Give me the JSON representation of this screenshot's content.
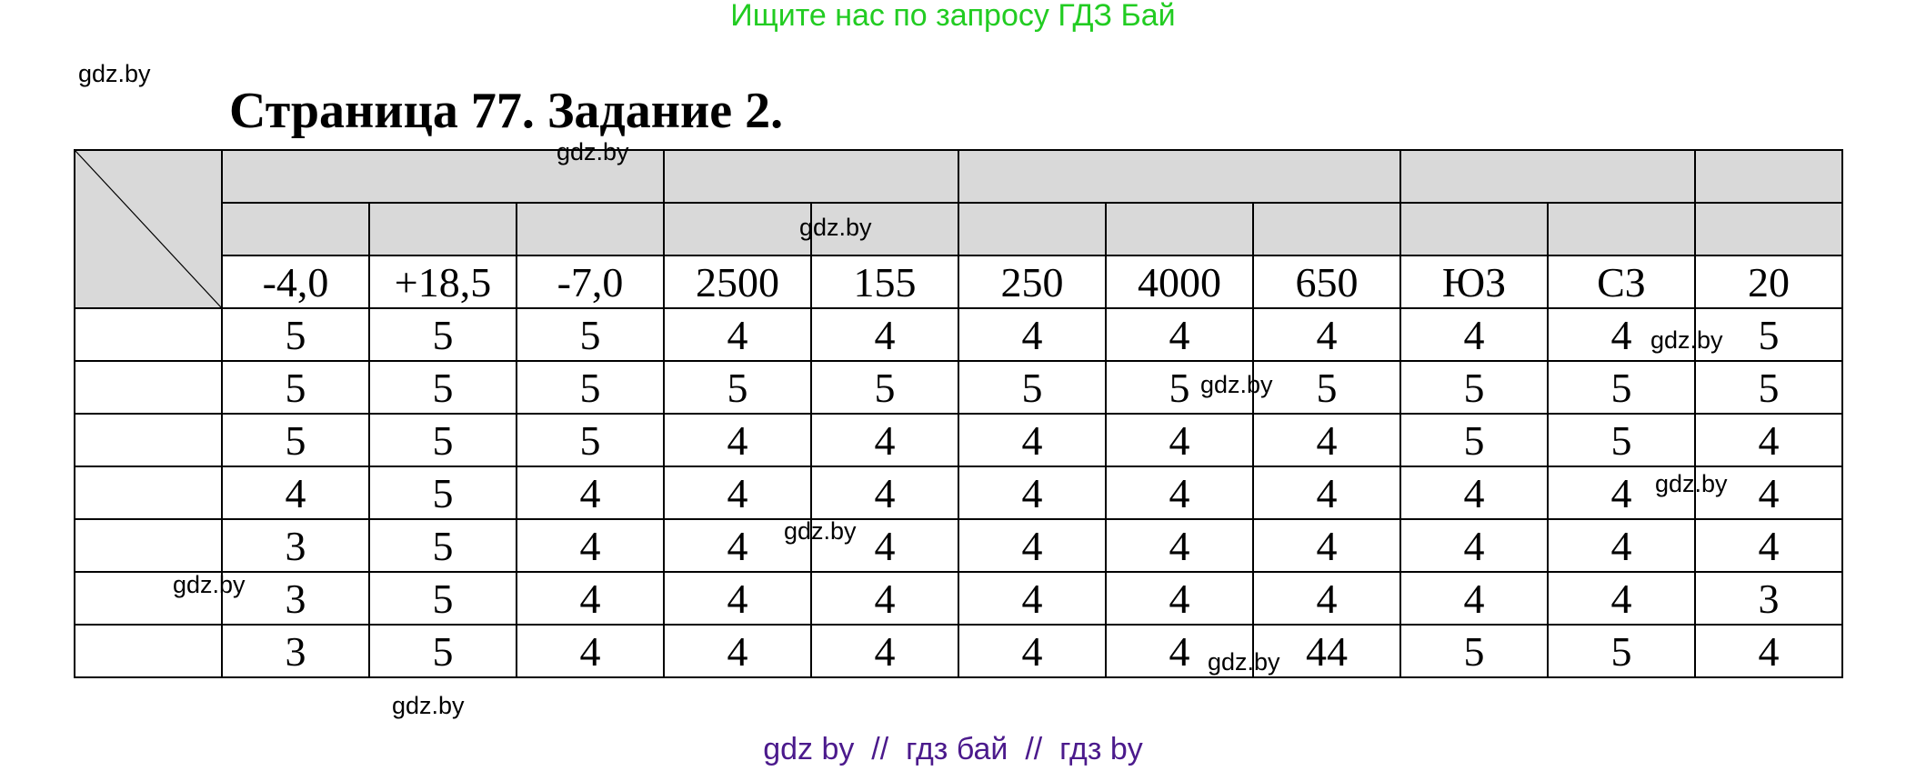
{
  "banner": "Ищите нас по запросу ГДЗ Бай",
  "title": "Страница 77. Задание 2.",
  "header_values": [
    "-4,0",
    "+18,5",
    "-7,0",
    "2500",
    "155",
    "250",
    "4000",
    "650",
    "ЮЗ",
    "СЗ",
    "20"
  ],
  "rows": [
    [
      "5",
      "5",
      "5",
      "4",
      "4",
      "4",
      "4",
      "4",
      "4",
      "4",
      "5"
    ],
    [
      "5",
      "5",
      "5",
      "5",
      "5",
      "5",
      "5",
      "5",
      "5",
      "5",
      "5"
    ],
    [
      "5",
      "5",
      "5",
      "4",
      "4",
      "4",
      "4",
      "4",
      "5",
      "5",
      "4"
    ],
    [
      "4",
      "5",
      "4",
      "4",
      "4",
      "4",
      "4",
      "4",
      "4",
      "4",
      "4"
    ],
    [
      "3",
      "5",
      "4",
      "4",
      "4",
      "4",
      "4",
      "4",
      "4",
      "4",
      "4"
    ],
    [
      "3",
      "5",
      "4",
      "4",
      "4",
      "4",
      "4",
      "4",
      "4",
      "4",
      "3"
    ],
    [
      "3",
      "5",
      "4",
      "4",
      "4",
      "4",
      "4",
      "44",
      "5",
      "5",
      "4"
    ]
  ],
  "watermark": "gdz.by",
  "footer": "gdz by  //  гдз бай  //  гдз by",
  "colors": {
    "banner": "#22cc22",
    "footer": "#4b1a8c",
    "header_fill": "#d9d9d9"
  }
}
